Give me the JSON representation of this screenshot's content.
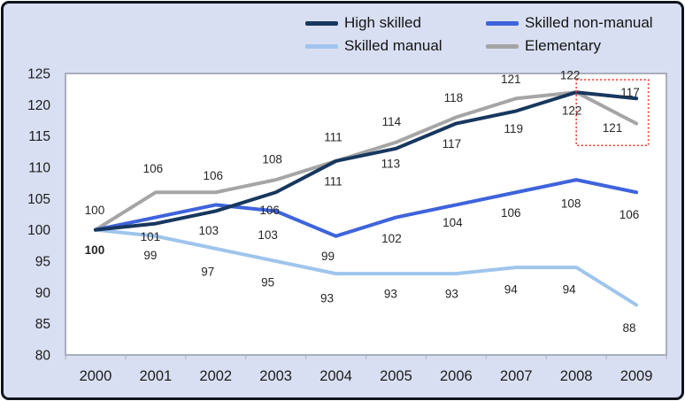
{
  "colors": {
    "background": "#d9dff2",
    "frame_border": "#10141c",
    "plot_area_fill": "#ffffff",
    "plot_border": "#a9aebc",
    "tick_text": "#1c1c1c",
    "data_label_text": "#262626",
    "highlight_box": "#f3392b"
  },
  "chart_data": {
    "type": "line",
    "title": "",
    "xlabel": "",
    "ylabel": "",
    "grid": false,
    "legend_position": "top-center",
    "x_tick_labels": [
      "2000",
      "2001",
      "2002",
      "2003",
      "2004",
      "2005",
      "2006",
      "2007",
      "2008",
      "2009"
    ],
    "y_tick_labels": [
      "125",
      "120",
      "115",
      "110",
      "105",
      "100",
      "95",
      "90",
      "85",
      "80"
    ],
    "ylim": [
      80,
      125
    ],
    "series": [
      {
        "name": "High skilled",
        "color": "#17375e",
        "values": [
          100,
          101,
          103,
          106,
          111,
          113,
          117,
          119,
          122,
          121
        ],
        "labels": [
          {
            "i": 0,
            "t": "100",
            "dx": -1,
            "dy": 23,
            "bold": true
          },
          {
            "i": 1,
            "t": "101",
            "dx": -6,
            "dy": 15
          },
          {
            "i": 2,
            "t": "103",
            "dx": -8,
            "dy": 22
          },
          {
            "i": 3,
            "t": "106",
            "dx": -7,
            "dy": 20
          },
          {
            "i": 4,
            "t": "111",
            "dx": -3,
            "dy": 23
          },
          {
            "i": 5,
            "t": "113",
            "dx": -6,
            "dy": 17
          },
          {
            "i": 6,
            "t": "117",
            "dx": -5,
            "dy": 23
          },
          {
            "i": 7,
            "t": "119",
            "dx": -3,
            "dy": 20
          },
          {
            "i": 8,
            "t": "122",
            "dx": -5,
            "dy": 21
          },
          {
            "i": 9,
            "t": "121",
            "dx": -27,
            "dy": 33
          }
        ]
      },
      {
        "name": "Skilled non-manual",
        "color": "#3e63dc",
        "values": [
          100,
          102,
          104,
          103,
          99,
          102,
          104,
          106,
          108,
          106
        ],
        "labels": [
          {
            "i": 3,
            "t": "103",
            "dx": -9,
            "dy": 27
          },
          {
            "i": 4,
            "t": "99",
            "dx": -9,
            "dy": 23
          },
          {
            "i": 5,
            "t": "102",
            "dx": -5,
            "dy": 24
          },
          {
            "i": 6,
            "t": "104",
            "dx": -4,
            "dy": 20
          },
          {
            "i": 7,
            "t": "106",
            "dx": -6,
            "dy": 23
          },
          {
            "i": 8,
            "t": "108",
            "dx": -6,
            "dy": 27
          },
          {
            "i": 9,
            "t": "106",
            "dx": -8,
            "dy": 25
          }
        ]
      },
      {
        "name": "Skilled manual",
        "color": "#9fc5ec",
        "values": [
          100,
          99,
          97,
          95,
          93,
          93,
          93,
          94,
          94,
          88
        ],
        "labels": [
          {
            "i": 1,
            "t": "99",
            "dx": -6,
            "dy": 22
          },
          {
            "i": 2,
            "t": "97",
            "dx": -9,
            "dy": 26
          },
          {
            "i": 3,
            "t": "95",
            "dx": -9,
            "dy": 24
          },
          {
            "i": 4,
            "t": "93",
            "dx": -10,
            "dy": 28
          },
          {
            "i": 5,
            "t": "93",
            "dx": -6,
            "dy": 23
          },
          {
            "i": 6,
            "t": "93",
            "dx": -5,
            "dy": 23
          },
          {
            "i": 7,
            "t": "94",
            "dx": -6,
            "dy": 25
          },
          {
            "i": 8,
            "t": "94",
            "dx": -8,
            "dy": 25
          },
          {
            "i": 9,
            "t": "88",
            "dx": -8,
            "dy": 26
          }
        ]
      },
      {
        "name": "Elementary",
        "color": "#a5a5a5",
        "values": [
          100,
          106,
          106,
          108,
          111,
          114,
          118,
          121,
          122,
          117
        ],
        "labels": [
          {
            "i": 0,
            "t": "100",
            "dx": -1,
            "dy": -22
          },
          {
            "i": 1,
            "t": "106",
            "dx": -3,
            "dy": -27
          },
          {
            "i": 2,
            "t": "106",
            "dx": -3,
            "dy": -19
          },
          {
            "i": 3,
            "t": "108",
            "dx": -4,
            "dy": -23
          },
          {
            "i": 4,
            "t": "111",
            "dx": -3,
            "dy": -27
          },
          {
            "i": 5,
            "t": "114",
            "dx": -5,
            "dy": -23
          },
          {
            "i": 6,
            "t": "118",
            "dx": -3,
            "dy": -22
          },
          {
            "i": 7,
            "t": "121",
            "dx": -6,
            "dy": -22
          },
          {
            "i": 8,
            "t": "122",
            "dx": -7,
            "dy": -19
          },
          {
            "i": 9,
            "t": "117",
            "dx": -7,
            "dy": -35
          }
        ]
      }
    ],
    "annotation_box": {
      "description": "red dotted rectangle highlighting 2008-2009 decline",
      "x1_year_index": 8,
      "x2_year_index": 9.2,
      "y_top_value": 124,
      "y_bottom_value": 113.5,
      "color": "#f3392b"
    }
  }
}
